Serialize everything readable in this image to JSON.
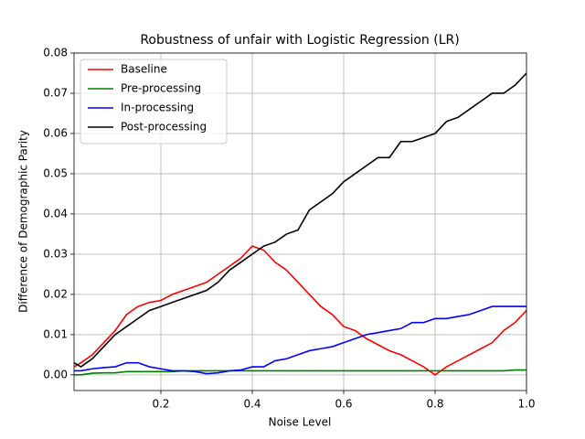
{
  "chart_data": {
    "type": "line",
    "title": "Robustness of unfair with Logistic Regression (LR)",
    "xlabel": "Noise Level",
    "ylabel": "Difference of Demographic Parity",
    "x": [
      0.01,
      0.025,
      0.05,
      0.075,
      0.1,
      0.125,
      0.15,
      0.175,
      0.2,
      0.225,
      0.25,
      0.275,
      0.3,
      0.325,
      0.35,
      0.375,
      0.4,
      0.425,
      0.45,
      0.475,
      0.5,
      0.525,
      0.55,
      0.575,
      0.6,
      0.625,
      0.65,
      0.675,
      0.7,
      0.725,
      0.75,
      0.775,
      0.8,
      0.825,
      0.85,
      0.875,
      0.9,
      0.925,
      0.95,
      0.975,
      1.0
    ],
    "series": [
      {
        "name": "Baseline",
        "color": "#ff0000",
        "values": [
          0.002,
          0.003,
          0.005,
          0.008,
          0.011,
          0.015,
          0.017,
          0.018,
          0.0185,
          0.02,
          0.021,
          0.022,
          0.023,
          0.025,
          0.027,
          0.029,
          0.032,
          0.031,
          0.028,
          0.026,
          0.023,
          0.02,
          0.017,
          0.015,
          0.012,
          0.011,
          0.009,
          0.0075,
          0.006,
          0.005,
          0.0035,
          0.002,
          0.0,
          0.002,
          0.0035,
          0.005,
          0.0065,
          0.008,
          0.011,
          0.013,
          0.016
        ]
      },
      {
        "name": "Pre-processing",
        "color": "#008000",
        "values": [
          0.0,
          0.0,
          0.0004,
          0.0005,
          0.0005,
          0.0008,
          0.0008,
          0.0008,
          0.0008,
          0.0008,
          0.001,
          0.001,
          0.001,
          0.001,
          0.001,
          0.001,
          0.001,
          0.001,
          0.001,
          0.001,
          0.001,
          0.001,
          0.001,
          0.001,
          0.001,
          0.001,
          0.001,
          0.001,
          0.001,
          0.001,
          0.001,
          0.001,
          0.001,
          0.001,
          0.001,
          0.001,
          0.001,
          0.001,
          0.001,
          0.0012,
          0.0012
        ]
      },
      {
        "name": "In-processing",
        "color": "#0000ff",
        "values": [
          0.001,
          0.001,
          0.0015,
          0.0018,
          0.002,
          0.003,
          0.003,
          0.002,
          0.0015,
          0.001,
          0.001,
          0.0008,
          0.0003,
          0.0005,
          0.001,
          0.0012,
          0.002,
          0.002,
          0.0035,
          0.004,
          0.005,
          0.006,
          0.0065,
          0.007,
          0.008,
          0.009,
          0.01,
          0.0105,
          0.011,
          0.0115,
          0.013,
          0.013,
          0.014,
          0.014,
          0.0145,
          0.015,
          0.016,
          0.017,
          0.017,
          0.017,
          0.017
        ]
      },
      {
        "name": "Post-processing",
        "color": "#000000",
        "values": [
          0.003,
          0.002,
          0.004,
          0.007,
          0.01,
          0.012,
          0.014,
          0.016,
          0.017,
          0.018,
          0.019,
          0.02,
          0.021,
          0.023,
          0.026,
          0.028,
          0.03,
          0.032,
          0.033,
          0.035,
          0.036,
          0.041,
          0.043,
          0.045,
          0.048,
          0.05,
          0.052,
          0.054,
          0.054,
          0.058,
          0.058,
          0.059,
          0.06,
          0.063,
          0.064,
          0.066,
          0.068,
          0.07,
          0.07,
          0.072,
          0.075
        ]
      }
    ],
    "xlim": [
      0.01,
      1.0
    ],
    "ylim": [
      -0.0039,
      0.08
    ],
    "xticks": [
      0.2,
      0.4,
      0.6,
      0.8,
      {
        "value": 1,
        "label": "1.0"
      }
    ],
    "yticks": [
      {
        "value": 0,
        "label": "0.00"
      },
      {
        "value": 0.01,
        "label": "0.01"
      },
      {
        "value": 0.02,
        "label": "0.02"
      },
      {
        "value": 0.03,
        "label": "0.03"
      },
      {
        "value": 0.04,
        "label": "0.04"
      },
      {
        "value": 0.05,
        "label": "0.05"
      },
      {
        "value": 0.06,
        "label": "0.06"
      },
      {
        "value": 0.07,
        "label": "0.07"
      },
      {
        "value": 0.08,
        "label": "0.08"
      }
    ],
    "grid": true,
    "legend": "upper left"
  }
}
